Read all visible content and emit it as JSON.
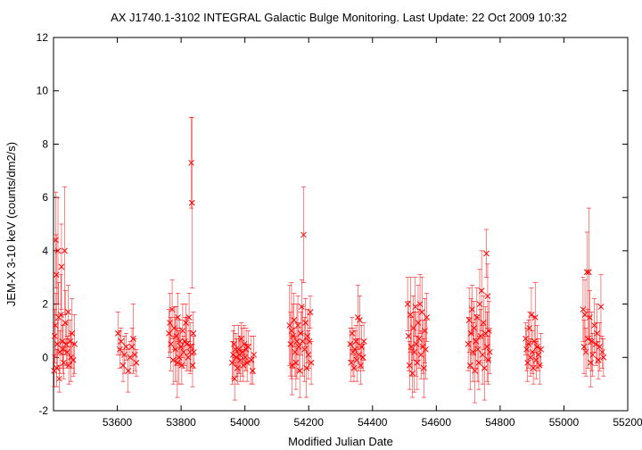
{
  "chart_data": {
    "type": "scatter",
    "title": "AX J1740.1-3102   INTEGRAL Galactic Bulge Monitoring.  Last Update: 22 Oct 2009 10:32",
    "xlabel": "Modified Julian Date",
    "ylabel": "JEM-X 3-10 keV (counts/dm2/s)",
    "xlim": [
      53400,
      55200
    ],
    "ylim": [
      -2,
      12
    ],
    "xticks": [
      53600,
      53800,
      54000,
      54200,
      54400,
      54600,
      54800,
      55000,
      55200
    ],
    "yticks": [
      -2,
      0,
      2,
      4,
      6,
      8,
      10,
      12
    ],
    "grid": false,
    "legend": "none",
    "marker": "x",
    "color": "#ff0000",
    "points": [
      [
        53402,
        -0.5,
        0.6
      ],
      [
        53404,
        0.8,
        1.0
      ],
      [
        53406,
        1.2,
        1.2
      ],
      [
        53407,
        4.4,
        1.8
      ],
      [
        53409,
        3.1,
        1.5
      ],
      [
        53410,
        -0.4,
        0.7
      ],
      [
        53412,
        0.5,
        0.9
      ],
      [
        53414,
        4.0,
        2.0
      ],
      [
        53416,
        1.5,
        1.3
      ],
      [
        53418,
        -0.8,
        0.5
      ],
      [
        53420,
        0.2,
        0.8
      ],
      [
        53423,
        1.6,
        1.5
      ],
      [
        53425,
        3.4,
        1.6
      ],
      [
        53428,
        0.6,
        1.0
      ],
      [
        53430,
        0.3,
        0.9
      ],
      [
        53432,
        -0.2,
        0.6
      ],
      [
        53435,
        4.0,
        2.4
      ],
      [
        53437,
        1.3,
        1.2
      ],
      [
        53440,
        0.5,
        0.8
      ],
      [
        53443,
        0.2,
        0.6
      ],
      [
        53446,
        1.7,
        1.0
      ],
      [
        53448,
        -0.3,
        0.7
      ],
      [
        53452,
        0.6,
        0.8
      ],
      [
        53455,
        0.0,
        0.9
      ],
      [
        53458,
        0.9,
        1.3
      ],
      [
        53462,
        -0.1,
        0.6
      ],
      [
        53466,
        0.5,
        1.1
      ],
      [
        53602,
        0.9,
        0.8
      ],
      [
        53608,
        0.3,
        0.7
      ],
      [
        53612,
        0.6,
        0.5
      ],
      [
        53618,
        -0.3,
        0.6
      ],
      [
        53622,
        0.1,
        0.7
      ],
      [
        53628,
        0.4,
        0.5
      ],
      [
        53634,
        -0.5,
        0.8
      ],
      [
        53640,
        0.0,
        0.6
      ],
      [
        53646,
        0.4,
        0.7
      ],
      [
        53650,
        0.7,
        1.3
      ],
      [
        53655,
        0.1,
        0.6
      ],
      [
        53660,
        -0.2,
        0.5
      ],
      [
        53762,
        0.9,
        0.9
      ],
      [
        53765,
        1.3,
        1.1
      ],
      [
        53768,
        0.5,
        1.0
      ],
      [
        53772,
        1.8,
        1.1
      ],
      [
        53775,
        -0.1,
        0.9
      ],
      [
        53778,
        1.1,
        0.8
      ],
      [
        53782,
        0.3,
        1.2
      ],
      [
        53785,
        0.8,
        1.1
      ],
      [
        53788,
        -0.2,
        1.3
      ],
      [
        53790,
        1.5,
        0.9
      ],
      [
        53793,
        0.0,
        1.0
      ],
      [
        53796,
        0.6,
        0.8
      ],
      [
        53799,
        0.4,
        0.7
      ],
      [
        53802,
        -0.3,
        0.7
      ],
      [
        53805,
        1.0,
        1.0
      ],
      [
        53808,
        0.2,
        0.6
      ],
      [
        53812,
        0.6,
        0.9
      ],
      [
        53815,
        1.3,
        0.7
      ],
      [
        53818,
        0.5,
        1.0
      ],
      [
        53822,
        0.0,
        0.5
      ],
      [
        53825,
        1.5,
        0.9
      ],
      [
        53828,
        0.2,
        0.8
      ],
      [
        53830,
        0.4,
        0.9
      ],
      [
        53832,
        7.3,
        1.7
      ],
      [
        53834,
        5.8,
        3.2
      ],
      [
        53836,
        -0.3,
        0.8
      ],
      [
        53838,
        0.9,
        0.8
      ],
      [
        53840,
        0.2,
        0.6
      ],
      [
        53960,
        -0.2,
        0.8
      ],
      [
        53963,
        0.1,
        0.9
      ],
      [
        53966,
        0.5,
        0.7
      ],
      [
        53968,
        -0.8,
        0.8
      ],
      [
        53971,
        0.3,
        0.6
      ],
      [
        53974,
        0.0,
        0.7
      ],
      [
        53977,
        -0.4,
        0.6
      ],
      [
        53980,
        0.3,
        0.9
      ],
      [
        53983,
        0.1,
        0.7
      ],
      [
        53986,
        -0.1,
        0.8
      ],
      [
        53989,
        0.7,
        0.6
      ],
      [
        53992,
        0.2,
        0.9
      ],
      [
        53995,
        -0.3,
        0.6
      ],
      [
        53998,
        0.5,
        0.7
      ],
      [
        54001,
        0.0,
        0.5
      ],
      [
        54004,
        0.3,
        0.8
      ],
      [
        54007,
        -0.2,
        0.7
      ],
      [
        54010,
        0.4,
        0.6
      ],
      [
        54020,
        -0.1,
        0.9
      ],
      [
        54024,
        -0.5,
        0.5
      ],
      [
        54028,
        0.1,
        0.7
      ],
      [
        54140,
        1.2,
        1.5
      ],
      [
        54143,
        0.5,
        1.2
      ],
      [
        54146,
        1.0,
        1.8
      ],
      [
        54148,
        -0.3,
        1.1
      ],
      [
        54151,
        0.8,
        1.2
      ],
      [
        54154,
        1.4,
        1.0
      ],
      [
        54157,
        0.2,
        0.9
      ],
      [
        54160,
        -0.2,
        1.0
      ],
      [
        54163,
        0.6,
        1.4
      ],
      [
        54166,
        1.2,
        1.1
      ],
      [
        54169,
        0.4,
        0.9
      ],
      [
        54172,
        -0.5,
        1.0
      ],
      [
        54175,
        0.9,
        0.8
      ],
      [
        54178,
        1.9,
        1.0
      ],
      [
        54181,
        0.6,
        1.3
      ],
      [
        54184,
        4.6,
        1.8
      ],
      [
        54187,
        0.3,
        1.2
      ],
      [
        54190,
        1.3,
        0.9
      ],
      [
        54193,
        -0.4,
        1.1
      ],
      [
        54196,
        0.8,
        1.0
      ],
      [
        54199,
        0.1,
        0.9
      ],
      [
        54202,
        0.6,
        1.0
      ],
      [
        54205,
        1.7,
        0.6
      ],
      [
        54208,
        -0.2,
        0.8
      ],
      [
        54330,
        0.5,
        0.6
      ],
      [
        54333,
        -0.2,
        0.7
      ],
      [
        54336,
        0.9,
        0.6
      ],
      [
        54339,
        0.2,
        0.9
      ],
      [
        54342,
        -0.4,
        0.5
      ],
      [
        54345,
        0.3,
        0.7
      ],
      [
        54348,
        0.6,
        0.6
      ],
      [
        54351,
        -0.1,
        0.8
      ],
      [
        54354,
        1.5,
        1.2
      ],
      [
        54357,
        0.1,
        0.6
      ],
      [
        54360,
        1.4,
        0.9
      ],
      [
        54363,
        -0.3,
        0.7
      ],
      [
        54366,
        0.4,
        0.8
      ],
      [
        54370,
        0.0,
        0.5
      ],
      [
        54373,
        0.6,
        0.7
      ],
      [
        54510,
        2.0,
        1.0
      ],
      [
        54513,
        0.8,
        1.3
      ],
      [
        54516,
        -0.3,
        0.9
      ],
      [
        54519,
        1.6,
        1.4
      ],
      [
        54522,
        0.4,
        1.1
      ],
      [
        54525,
        -0.6,
        0.9
      ],
      [
        54528,
        1.1,
        1.2
      ],
      [
        54531,
        0.2,
        1.5
      ],
      [
        54534,
        1.9,
        1.1
      ],
      [
        54537,
        0.5,
        1.2
      ],
      [
        54540,
        -0.2,
        1.0
      ],
      [
        54543,
        1.3,
        1.4
      ],
      [
        54546,
        0.7,
        1.1
      ],
      [
        54549,
        2.0,
        1.1
      ],
      [
        54552,
        0.1,
        0.9
      ],
      [
        54555,
        1.7,
        1.3
      ],
      [
        54558,
        0.4,
        1.0
      ],
      [
        54561,
        -0.4,
        1.1
      ],
      [
        54564,
        1.0,
        1.2
      ],
      [
        54567,
        0.3,
        1.1
      ],
      [
        54570,
        1.5,
        0.9
      ],
      [
        54700,
        0.5,
        1.0
      ],
      [
        54703,
        1.4,
        1.2
      ],
      [
        54706,
        -0.3,
        0.9
      ],
      [
        54709,
        0.9,
        1.3
      ],
      [
        54712,
        1.8,
        0.9
      ],
      [
        54715,
        0.2,
        1.1
      ],
      [
        54718,
        1.1,
        1.0
      ],
      [
        54721,
        -0.5,
        1.2
      ],
      [
        54724,
        0.6,
        1.0
      ],
      [
        54727,
        1.5,
        1.1
      ],
      [
        54730,
        0.3,
        1.2
      ],
      [
        54733,
        -0.2,
        1.0
      ],
      [
        54736,
        2.0,
        1.3
      ],
      [
        54739,
        0.8,
        1.0
      ],
      [
        54742,
        2.5,
        1.5
      ],
      [
        54745,
        0.1,
        1.1
      ],
      [
        54748,
        1.3,
        1.0
      ],
      [
        54751,
        -0.4,
        1.2
      ],
      [
        54754,
        0.9,
        1.0
      ],
      [
        54757,
        3.9,
        0.9
      ],
      [
        54759,
        0.4,
        1.3
      ],
      [
        54761,
        2.3,
        1.2
      ],
      [
        54763,
        -0.1,
        0.9
      ],
      [
        54765,
        1.0,
        1.1
      ],
      [
        54768,
        0.2,
        0.8
      ],
      [
        54880,
        0.7,
        0.6
      ],
      [
        54883,
        0.3,
        0.8
      ],
      [
        54886,
        -0.2,
        0.7
      ],
      [
        54889,
        0.5,
        0.9
      ],
      [
        54892,
        1.1,
        0.6
      ],
      [
        54895,
        0.0,
        0.7
      ],
      [
        54898,
        1.6,
        1.0
      ],
      [
        54901,
        0.2,
        0.8
      ],
      [
        54904,
        -0.4,
        0.6
      ],
      [
        54907,
        0.6,
        0.9
      ],
      [
        54910,
        1.5,
        1.3
      ],
      [
        54913,
        -0.1,
        0.7
      ],
      [
        54916,
        0.4,
        0.8
      ],
      [
        54920,
        0.1,
        0.6
      ],
      [
        54924,
        -0.3,
        0.7
      ],
      [
        54928,
        0.3,
        0.6
      ],
      [
        55060,
        1.8,
        1.2
      ],
      [
        55063,
        0.4,
        1.0
      ],
      [
        55066,
        1.6,
        1.3
      ],
      [
        55069,
        0.2,
        0.9
      ],
      [
        55072,
        3.2,
        1.5
      ],
      [
        55075,
        0.7,
        1.1
      ],
      [
        55078,
        3.2,
        2.4
      ],
      [
        55081,
        1.5,
        1.0
      ],
      [
        55084,
        -0.2,
        0.9
      ],
      [
        55087,
        0.6,
        1.1
      ],
      [
        55090,
        0.1,
        0.8
      ],
      [
        55095,
        1.2,
        1.0
      ],
      [
        55100,
        0.5,
        0.8
      ],
      [
        55104,
        0.9,
        1.1
      ],
      [
        55108,
        -0.1,
        0.7
      ],
      [
        55112,
        0.4,
        0.9
      ],
      [
        55116,
        1.9,
        1.2
      ],
      [
        55120,
        0.2,
        0.6
      ],
      [
        55124,
        0.0,
        0.7
      ]
    ]
  }
}
